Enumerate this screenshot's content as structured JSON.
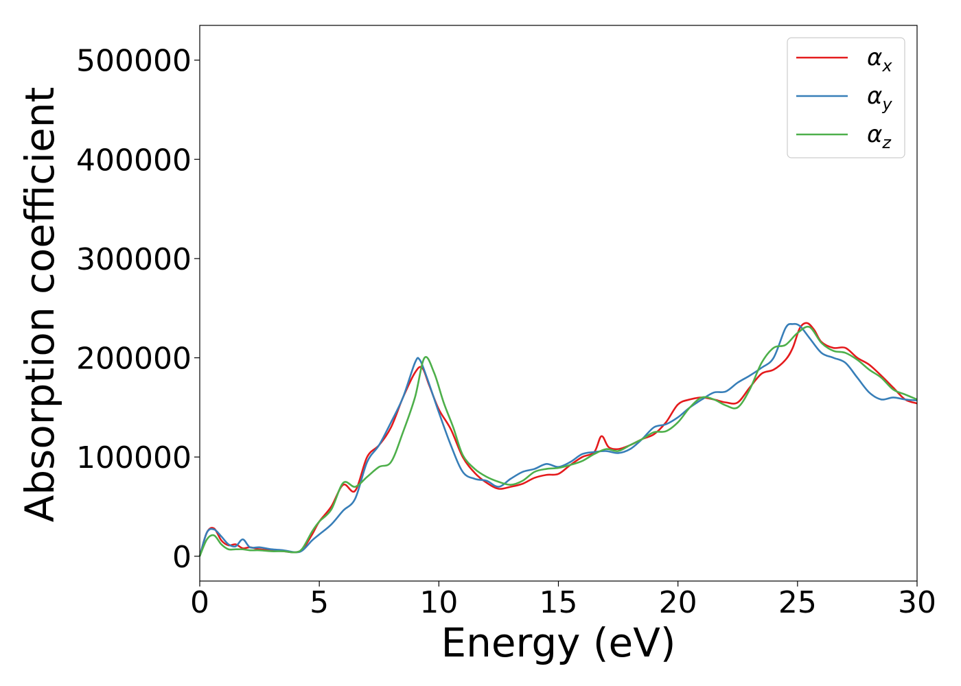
{
  "chart_data": {
    "type": "line",
    "title": "",
    "xlabel": "Energy (eV)",
    "ylabel": "Absorption coefficient",
    "xlim": [
      0,
      30
    ],
    "ylim": [
      -25000,
      535000
    ],
    "xticks": [
      0,
      5,
      10,
      15,
      20,
      25,
      30
    ],
    "xtick_labels": [
      "0",
      "5",
      "10",
      "15",
      "20",
      "25",
      "30"
    ],
    "yticks": [
      0,
      100000,
      200000,
      300000,
      400000,
      500000
    ],
    "ytick_labels": [
      "0",
      "100000",
      "200000",
      "300000",
      "400000",
      "500000"
    ],
    "grid": false,
    "legend_position": "top-right",
    "series": [
      {
        "name": "α",
        "subscript": "x",
        "color": "#e41a1c",
        "x": [
          0,
          0.3,
          0.6,
          0.9,
          1.2,
          1.5,
          1.8,
          2.1,
          2.5,
          3.0,
          3.5,
          4.0,
          4.3,
          4.7,
          5.0,
          5.5,
          6.0,
          6.5,
          7.0,
          7.5,
          8.0,
          8.5,
          9.0,
          9.3,
          9.6,
          10.0,
          10.5,
          11.0,
          11.5,
          12.0,
          12.5,
          13.0,
          13.5,
          14.0,
          14.5,
          15.0,
          15.5,
          16.0,
          16.5,
          16.8,
          17.1,
          17.5,
          18.0,
          18.5,
          19.0,
          19.5,
          20.0,
          20.5,
          21.0,
          21.5,
          22.0,
          22.5,
          23.0,
          23.5,
          24.0,
          24.5,
          24.8,
          25.1,
          25.4,
          25.7,
          26.0,
          26.5,
          27.0,
          27.5,
          28.0,
          28.5,
          29.0,
          29.5,
          30.0
        ],
        "y": [
          0,
          24000,
          28000,
          16000,
          11000,
          12000,
          8000,
          9000,
          7000,
          6000,
          5000,
          4000,
          7000,
          22000,
          35000,
          50000,
          72000,
          66000,
          100000,
          112000,
          130000,
          160000,
          185000,
          190000,
          172000,
          148000,
          128000,
          100000,
          84000,
          74000,
          68000,
          70000,
          73000,
          79000,
          82000,
          83000,
          92000,
          100000,
          105000,
          121000,
          110000,
          108000,
          112000,
          118000,
          123000,
          135000,
          153000,
          158000,
          160000,
          158000,
          155000,
          155000,
          170000,
          184000,
          188000,
          198000,
          210000,
          230000,
          235000,
          228000,
          216000,
          210000,
          210000,
          200000,
          193000,
          182000,
          170000,
          158000,
          154000
        ]
      },
      {
        "name": "α",
        "subscript": "y",
        "color": "#377eb8",
        "x": [
          0,
          0.3,
          0.6,
          0.9,
          1.2,
          1.5,
          1.8,
          2.1,
          2.5,
          3.0,
          3.5,
          4.0,
          4.3,
          4.7,
          5.0,
          5.5,
          6.0,
          6.5,
          7.0,
          7.5,
          8.0,
          8.5,
          9.0,
          9.2,
          9.5,
          10.0,
          10.5,
          11.0,
          11.5,
          12.0,
          12.5,
          13.0,
          13.5,
          14.0,
          14.5,
          15.0,
          15.5,
          16.0,
          16.5,
          17.0,
          17.5,
          18.0,
          18.5,
          19.0,
          19.5,
          20.0,
          20.5,
          21.0,
          21.5,
          22.0,
          22.5,
          23.0,
          23.5,
          24.0,
          24.5,
          24.8,
          25.1,
          25.5,
          26.0,
          26.5,
          27.0,
          27.5,
          28.0,
          28.5,
          29.0,
          29.5,
          30.0
        ],
        "y": [
          0,
          24000,
          27000,
          20000,
          12000,
          10000,
          17000,
          9000,
          9000,
          7000,
          6000,
          4000,
          6000,
          16000,
          22000,
          32000,
          46000,
          58000,
          95000,
          112000,
          135000,
          160000,
          195000,
          198000,
          180000,
          145000,
          112000,
          85000,
          78000,
          76000,
          70000,
          78000,
          85000,
          88000,
          93000,
          90000,
          95000,
          103000,
          105000,
          106000,
          104000,
          108000,
          118000,
          130000,
          133000,
          140000,
          150000,
          158000,
          165000,
          166000,
          175000,
          182000,
          190000,
          200000,
          230000,
          234000,
          232000,
          220000,
          205000,
          200000,
          195000,
          180000,
          165000,
          158000,
          160000,
          158000,
          157000
        ]
      },
      {
        "name": "α",
        "subscript": "z",
        "color": "#4daf4a",
        "x": [
          0,
          0.3,
          0.6,
          0.9,
          1.2,
          1.5,
          1.8,
          2.1,
          2.5,
          3.0,
          3.5,
          4.0,
          4.3,
          4.7,
          5.0,
          5.5,
          6.0,
          6.5,
          7.0,
          7.5,
          8.0,
          8.5,
          9.0,
          9.4,
          9.8,
          10.2,
          10.6,
          11.0,
          11.5,
          12.0,
          12.5,
          13.0,
          13.5,
          14.0,
          14.5,
          15.0,
          15.5,
          16.0,
          16.5,
          17.0,
          17.5,
          18.0,
          18.5,
          19.0,
          19.5,
          20.0,
          20.5,
          21.0,
          21.5,
          22.0,
          22.5,
          23.0,
          23.5,
          24.0,
          24.5,
          25.0,
          25.5,
          26.0,
          26.5,
          27.0,
          27.5,
          28.0,
          28.5,
          29.0,
          29.5,
          30.0
        ],
        "y": [
          0,
          17000,
          21000,
          12000,
          7000,
          7000,
          7000,
          6000,
          6000,
          5000,
          5000,
          4000,
          8000,
          25000,
          35000,
          47000,
          74000,
          70000,
          80000,
          90000,
          95000,
          125000,
          160000,
          200000,
          185000,
          155000,
          130000,
          102000,
          88000,
          80000,
          75000,
          72000,
          76000,
          85000,
          88000,
          89000,
          92000,
          96000,
          103000,
          108000,
          106000,
          112000,
          118000,
          125000,
          126000,
          135000,
          150000,
          160000,
          158000,
          152000,
          150000,
          168000,
          195000,
          210000,
          213000,
          225000,
          231000,
          215000,
          207000,
          205000,
          198000,
          188000,
          180000,
          168000,
          163000,
          158000
        ]
      }
    ]
  }
}
